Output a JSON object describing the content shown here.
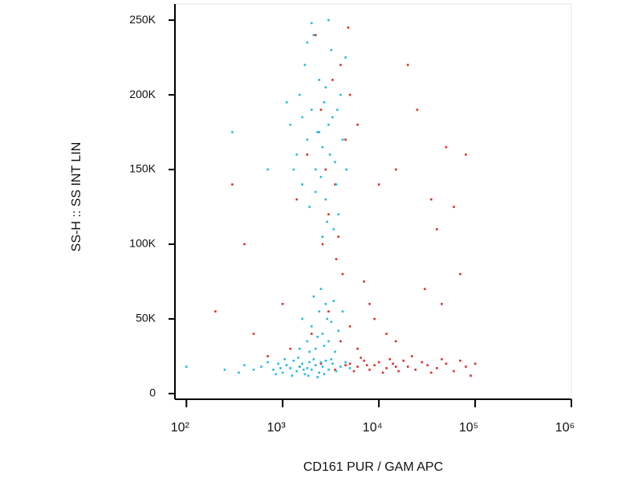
{
  "chart_data": {
    "type": "scatter",
    "xlabel": "CD161 PUR / GAM APC",
    "ylabel": "SS-H :: SS INT LIN",
    "xscale": "log",
    "xlim": [
      76,
      1000000
    ],
    "ylim": [
      -3800,
      260800
    ],
    "xticks": [
      {
        "value": 100,
        "label": "10²"
      },
      {
        "value": 1000,
        "label": "10³"
      },
      {
        "value": 10000,
        "label": "10⁴"
      },
      {
        "value": 100000,
        "label": "10⁵"
      },
      {
        "value": 1000000,
        "label": "10⁶"
      }
    ],
    "yticks": [
      0,
      {
        "value": 50000,
        "label": "50K"
      },
      {
        "value": 100000,
        "label": "100K"
      },
      {
        "value": 150000,
        "label": "150K"
      },
      {
        "value": 200000,
        "label": "200K"
      },
      {
        "value": 250000,
        "label": "250K"
      }
    ],
    "series": [
      {
        "color": "#d8312e",
        "x": [
          5000,
          6000,
          7000,
          8000,
          9000,
          10000,
          12000,
          14000,
          16000,
          18000,
          20000,
          24000,
          28000,
          32000,
          40000,
          50000,
          60000,
          70000,
          80000,
          100000,
          5500,
          6500,
          7500,
          11000,
          13000,
          15000,
          22000,
          35000,
          45000,
          90000,
          1500,
          2500,
          3500,
          4500,
          2000,
          3000,
          4000,
          5000,
          6000,
          8000,
          1800,
          2500,
          3500,
          4000,
          3000,
          4500,
          2200,
          5000,
          3800,
          2800,
          1400,
          3300,
          4800,
          6000,
          2600,
          1200,
          1000,
          700,
          500,
          4200,
          3600,
          7000,
          9000,
          12000,
          15000,
          20000,
          25000,
          50000,
          80000,
          15000,
          35000,
          40000,
          60000,
          70000,
          30000,
          45000,
          10000,
          300,
          400,
          200
        ],
        "values": [
          20000,
          18000,
          22000,
          16000,
          19000,
          21000,
          17000,
          20000,
          15000,
          22000,
          18000,
          16000,
          21000,
          19000,
          17000,
          20000,
          15000,
          22000,
          18000,
          20000,
          15000,
          24000,
          19000,
          14000,
          23000,
          18000,
          25000,
          14000,
          23000,
          12000,
          18000,
          20000,
          16000,
          19000,
          40000,
          55000,
          35000,
          45000,
          30000,
          60000,
          160000,
          190000,
          140000,
          220000,
          120000,
          170000,
          240000,
          200000,
          105000,
          150000,
          130000,
          210000,
          245000,
          180000,
          100000,
          30000,
          60000,
          25000,
          40000,
          80000,
          90000,
          75000,
          50000,
          40000,
          35000,
          220000,
          190000,
          165000,
          160000,
          150000,
          130000,
          110000,
          125000,
          80000,
          70000,
          60000,
          140000,
          140000,
          100000,
          55000
        ]
      },
      {
        "color": "#2bb8e3",
        "x": [
          600,
          800,
          900,
          1000,
          1100,
          1200,
          1300,
          1400,
          1500,
          1600,
          1700,
          1800,
          1900,
          2000,
          2200,
          2400,
          2600,
          2800,
          3000,
          3300,
          3600,
          4000,
          700,
          850,
          950,
          1050,
          1250,
          1450,
          1650,
          1850,
          2100,
          2300,
          2500,
          2700,
          3200,
          500,
          400,
          350,
          4500,
          5000,
          1800,
          2000,
          2200,
          2400,
          2600,
          2800,
          3000,
          3200,
          3500,
          1600,
          2100,
          2700,
          3800,
          1500,
          4200,
          2300,
          2900,
          2500,
          1900,
          3400,
          1200,
          1400,
          1500,
          1600,
          1800,
          2000,
          2200,
          2400,
          2600,
          2800,
          3000,
          3200,
          3500,
          3800,
          4000,
          1700,
          1900,
          2100,
          2300,
          2500,
          2700,
          2900,
          3100,
          3300,
          3600,
          4200,
          4500,
          1300,
          1100,
          2000,
          2600,
          3000,
          2200,
          2800,
          3400,
          1600,
          1800,
          2400,
          3700,
          4600,
          300,
          700,
          100,
          250
        ],
        "values": [
          18000,
          16000,
          20000,
          14000,
          19000,
          17000,
          22000,
          15000,
          18000,
          20000,
          13000,
          17000,
          21000,
          16000,
          19000,
          14000,
          18000,
          22000,
          16000,
          20000,
          15000,
          18000,
          21000,
          13000,
          17000,
          23000,
          12000,
          24000,
          16000,
          12000,
          23000,
          11000,
          21000,
          13000,
          23000,
          16000,
          19000,
          14000,
          21000,
          17000,
          35000,
          45000,
          30000,
          55000,
          40000,
          60000,
          35000,
          48000,
          28000,
          50000,
          65000,
          32000,
          42000,
          30000,
          55000,
          38000,
          50000,
          70000,
          28000,
          62000,
          180000,
          160000,
          200000,
          140000,
          170000,
          190000,
          150000,
          210000,
          165000,
          130000,
          180000,
          230000,
          155000,
          120000,
          200000,
          220000,
          125000,
          240000,
          175000,
          145000,
          195000,
          115000,
          160000,
          185000,
          140000,
          170000,
          225000,
          150000,
          195000,
          248000,
          105000,
          250000,
          135000,
          205000,
          110000,
          185000,
          235000,
          175000,
          190000,
          150000,
          175000,
          150000,
          18000,
          16000
        ]
      }
    ]
  }
}
